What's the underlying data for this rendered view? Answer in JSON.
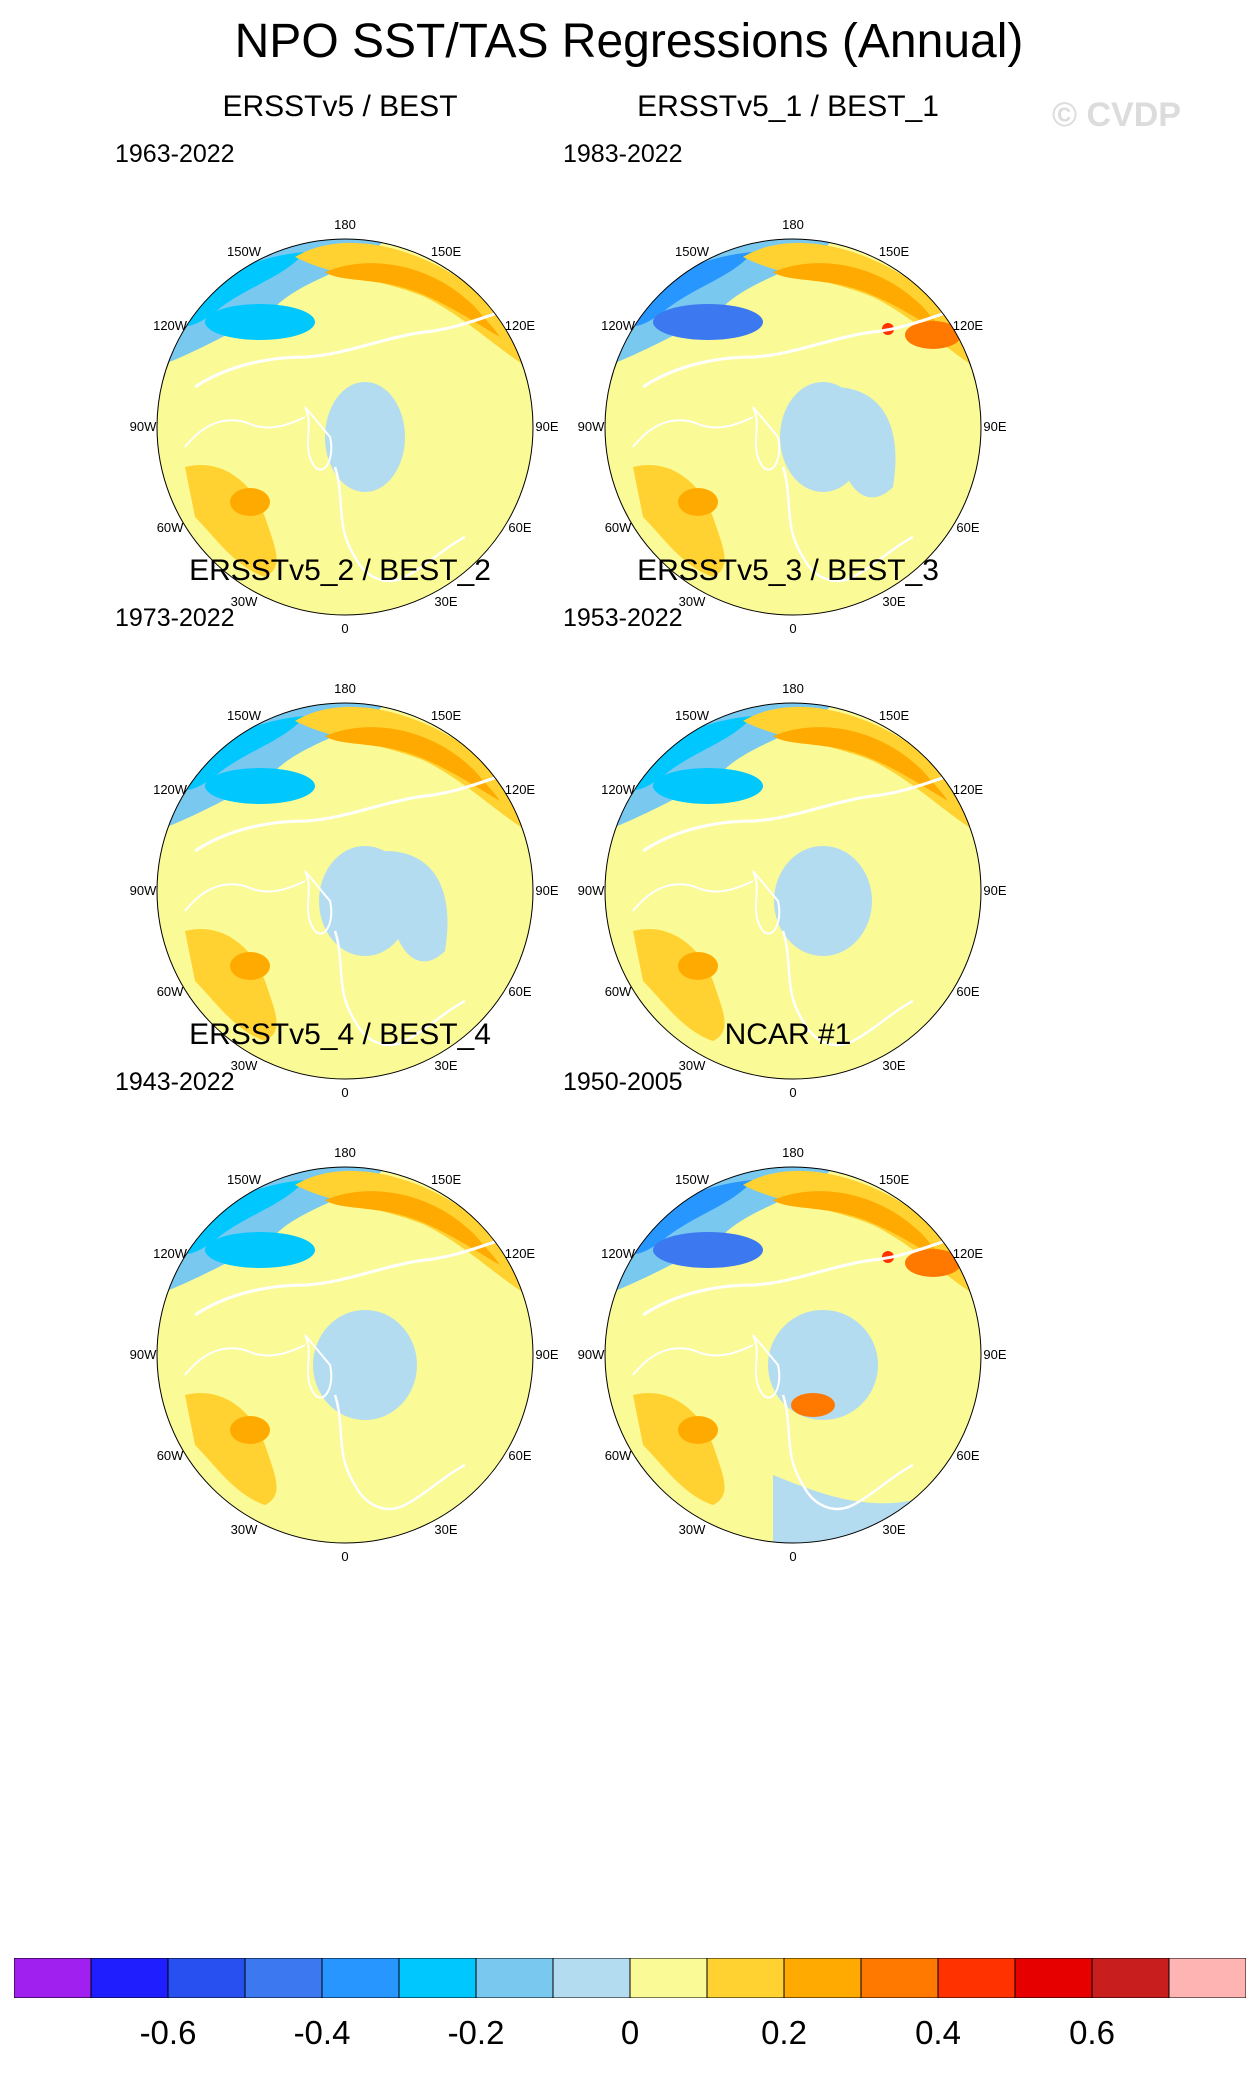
{
  "title": "NPO SST/TAS Regressions (Annual)",
  "watermark": "© CVDP",
  "colors": {
    "contour_fill": [
      "#a020f0",
      "#1e1eff",
      "#2850f0",
      "#3c78f0",
      "#2896ff",
      "#00c8ff",
      "#78c8f0",
      "#b4dcf0",
      "#fafa96",
      "#ffd232",
      "#ffaa00",
      "#ff7800",
      "#ff3200",
      "#e60000",
      "#c81e1e",
      "#ffb4b4"
    ],
    "land_outline": "#ffffff",
    "background": "#ffffff"
  },
  "lon_labels": [
    "180",
    "150E",
    "120E",
    "90E",
    "60E",
    "30E",
    "0",
    "30W",
    "60W",
    "90W",
    "120W",
    "150W"
  ],
  "panels": [
    {
      "title": "ERSSTv5 / BEST",
      "period": "1963-2022"
    },
    {
      "title": "ERSSTv5_1 / BEST_1",
      "period": "1983-2022"
    },
    {
      "title": "ERSSTv5_2 / BEST_2",
      "period": "1973-2022"
    },
    {
      "title": "ERSSTv5_3 / BEST_3",
      "period": "1953-2022"
    },
    {
      "title": "ERSSTv5_4 / BEST_4",
      "period": "1943-2022"
    },
    {
      "title": "NCAR #1",
      "period": "1950-2005"
    }
  ],
  "colorbar": {
    "labels": [
      "-0.6",
      "-0.4",
      "-0.2",
      "0",
      "0.2",
      "0.4",
      "0.6"
    ]
  }
}
